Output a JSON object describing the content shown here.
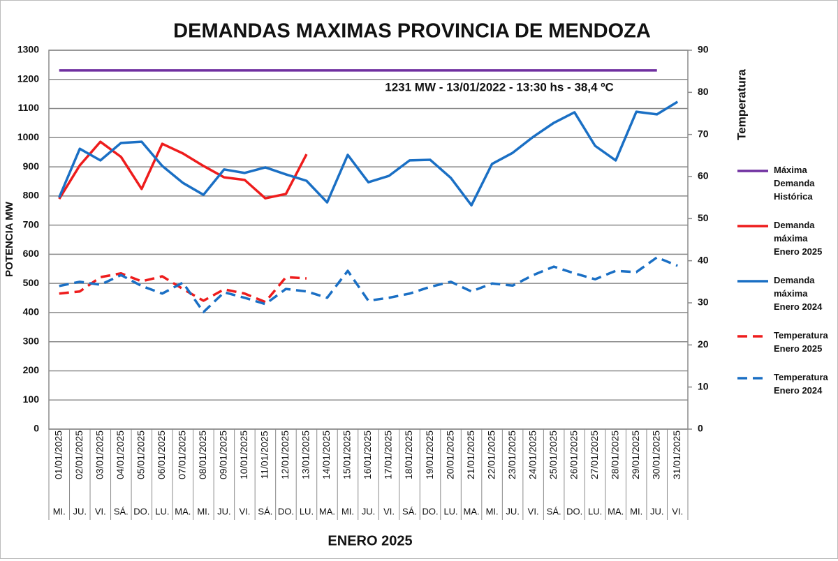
{
  "chart_data": {
    "type": "line",
    "title": "DEMANDAS MAXIMAS PROVINCIA DE MENDOZA",
    "annotation": "1231 MW - 13/01/2022 - 13:30 hs - 38,4 ºC",
    "x_label": "ENERO 2025",
    "y_label": "POTENCIA MW",
    "y2_label": "Temperatura",
    "categories": [
      "01/01/2025",
      "02/01/2025",
      "03/01/2025",
      "04/01/2025",
      "05/01/2025",
      "06/01/2025",
      "07/01/2025",
      "08/01/2025",
      "09/01/2025",
      "10/01/2025",
      "11/01/2025",
      "12/01/2025",
      "13/01/2025",
      "14/01/2025",
      "15/01/2025",
      "16/01/2025",
      "17/01/2025",
      "18/01/2025",
      "19/01/2025",
      "20/01/2025",
      "21/01/2025",
      "22/01/2025",
      "23/01/2025",
      "24/01/2025",
      "25/01/2025",
      "26/01/2025",
      "27/01/2025",
      "28/01/2025",
      "29/01/2025",
      "30/01/2025",
      "31/01/2025"
    ],
    "weekdays": [
      "MI.",
      "JU.",
      "VI.",
      "SÁ.",
      "DO.",
      "LU.",
      "MA.",
      "MI.",
      "JU.",
      "VI.",
      "SÁ.",
      "DO.",
      "LU.",
      "MA.",
      "MI.",
      "JU.",
      "VI.",
      "SÁ.",
      "DO.",
      "LU.",
      "MA.",
      "MI.",
      "JU.",
      "VI.",
      "SÁ.",
      "DO.",
      "LU.",
      "MA.",
      "MI.",
      "JU.",
      "VI."
    ],
    "ylim": [
      0,
      1300
    ],
    "yticks": [
      0,
      100,
      200,
      300,
      400,
      500,
      600,
      700,
      800,
      900,
      1000,
      1100,
      1200,
      1300
    ],
    "y2lim": [
      0,
      90
    ],
    "y2ticks": [
      0,
      10,
      20,
      30,
      40,
      50,
      60,
      70,
      80,
      90
    ],
    "grid": true,
    "legend": "right",
    "series": [
      {
        "name": "Máxima Demanda Histórica",
        "color": "#7030a0",
        "dashed": false,
        "values": [
          1231,
          1231,
          1231,
          1231,
          1231,
          1231,
          1231,
          1231,
          1231,
          1231,
          1231,
          1231,
          1231,
          1231,
          1231,
          1231,
          1231,
          1231,
          1231,
          1231,
          1231,
          1231,
          1231,
          1231,
          1231,
          1231,
          1231,
          1231,
          1231,
          1231,
          null
        ]
      },
      {
        "name": "Demanda máxima Enero 2025",
        "color": "#ee1c1c",
        "dashed": false,
        "values": [
          790,
          905,
          986,
          934,
          824,
          979,
          946,
          903,
          864,
          855,
          792,
          807,
          943,
          null,
          null,
          null,
          null,
          null,
          null,
          null,
          null,
          null,
          null,
          null,
          null,
          null,
          null,
          null,
          null,
          null,
          null
        ]
      },
      {
        "name": "Demanda máxima Enero 2024",
        "color": "#1a6fc4",
        "dashed": false,
        "values": [
          795,
          962,
          922,
          982,
          986,
          903,
          845,
          804,
          891,
          879,
          898,
          874,
          852,
          778,
          941,
          847,
          869,
          922,
          924,
          862,
          768,
          910,
          948,
          1003,
          1051,
          1087,
          972,
          922,
          1089,
          1080,
          1123
        ]
      },
      {
        "name": "Temperatura Enero 2025",
        "color": "#ee1c1c",
        "dashed": true,
        "axis": "y2",
        "values": [
          32.2,
          32.7,
          36.1,
          37.0,
          35.1,
          36.3,
          33.3,
          30.5,
          33.2,
          32.2,
          30.2,
          36.1,
          35.8,
          null,
          null,
          null,
          null,
          null,
          null,
          null,
          null,
          null,
          null,
          null,
          null,
          null,
          null,
          null,
          null,
          null,
          null
        ]
      },
      {
        "name": "Temperatura Enero 2024",
        "color": "#1a6fc4",
        "dashed": true,
        "axis": "y2",
        "values": [
          34.0,
          35.0,
          34.3,
          36.6,
          34.0,
          32.2,
          34.8,
          27.8,
          32.5,
          31.2,
          29.7,
          33.3,
          32.7,
          31.2,
          37.6,
          30.5,
          31.2,
          32.2,
          33.8,
          35.0,
          32.7,
          34.6,
          34.1,
          36.6,
          38.6,
          37.0,
          35.6,
          37.6,
          37.3,
          40.8,
          38.8
        ]
      }
    ]
  }
}
